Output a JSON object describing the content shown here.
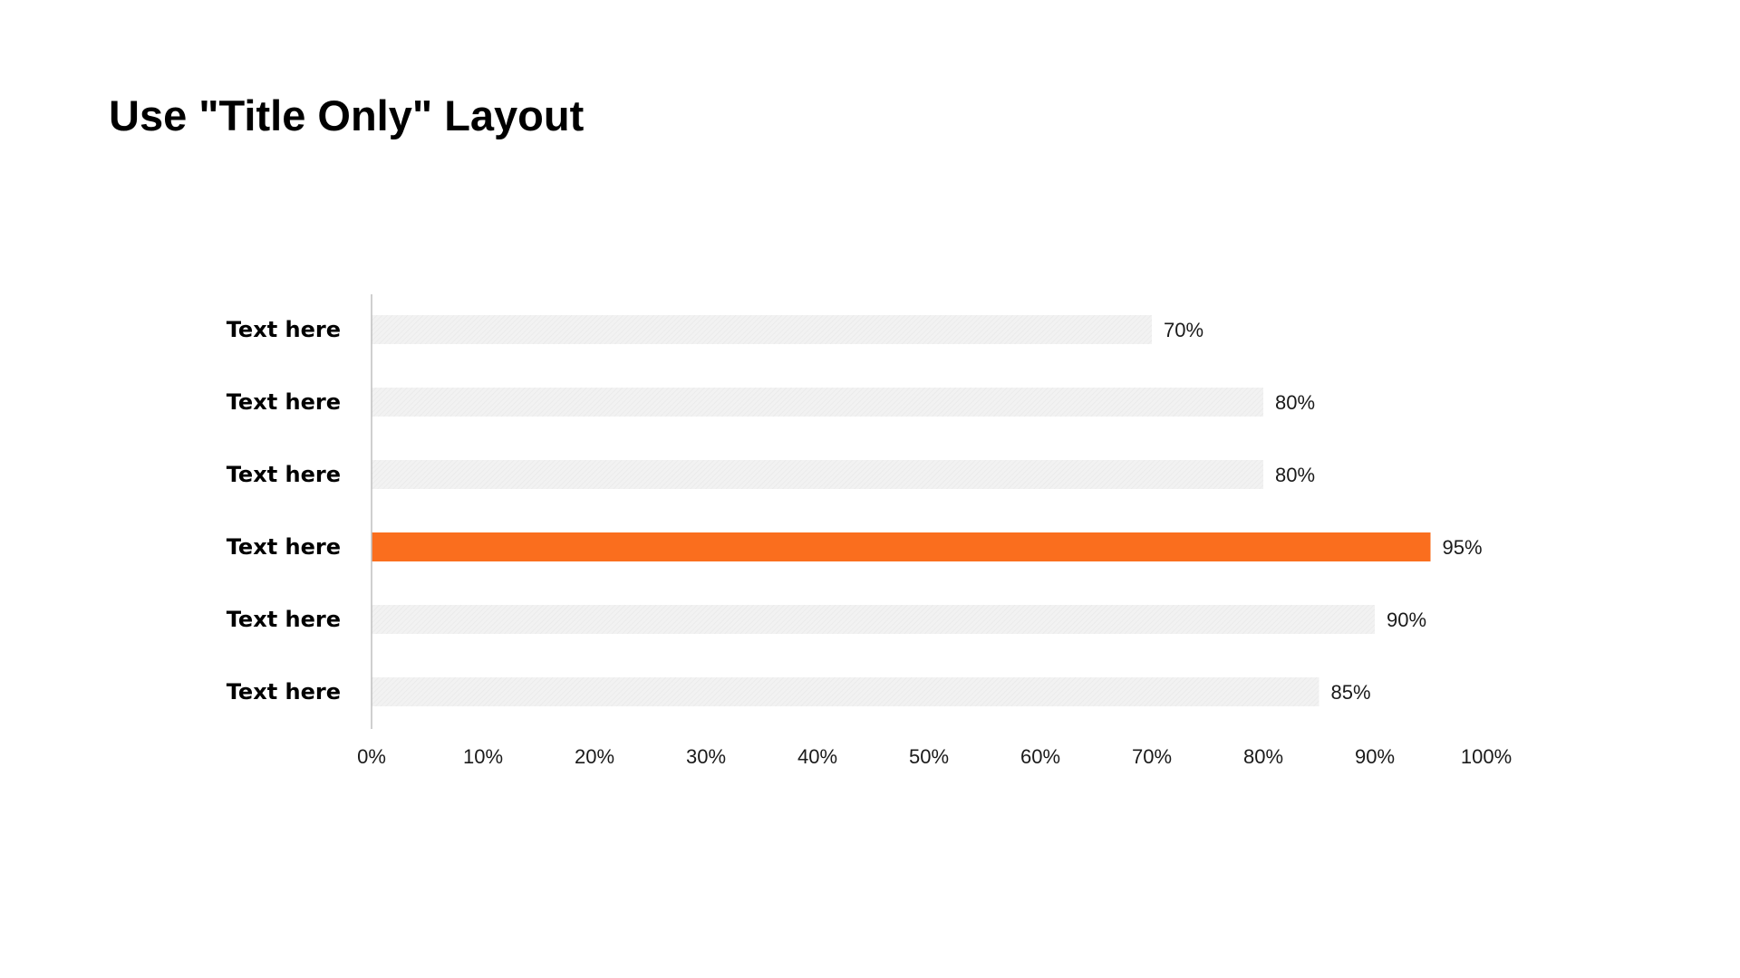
{
  "slide": {
    "title": "Use \"Title Only\" Layout"
  },
  "chart_data": {
    "type": "bar",
    "orientation": "horizontal",
    "categories": [
      "Text here",
      "Text here",
      "Text here",
      "Text here",
      "Text here",
      "Text here"
    ],
    "values": [
      70,
      80,
      80,
      95,
      90,
      85
    ],
    "data_labels": [
      "70%",
      "80%",
      "80%",
      "95%",
      "90%",
      "85%"
    ],
    "highlight_index": 3,
    "xlim": [
      0,
      100
    ],
    "x_ticks": [
      0,
      10,
      20,
      30,
      40,
      50,
      60,
      70,
      80,
      90,
      100
    ],
    "x_tick_labels": [
      "0%",
      "10%",
      "20%",
      "30%",
      "40%",
      "50%",
      "60%",
      "70%",
      "80%",
      "90%",
      "100%"
    ],
    "grid": false,
    "legend": "none",
    "colors": {
      "default_bar": "#f2f2f2",
      "highlight_bar": "#fa6e1e",
      "axis_line": "#bfbfbf"
    }
  }
}
